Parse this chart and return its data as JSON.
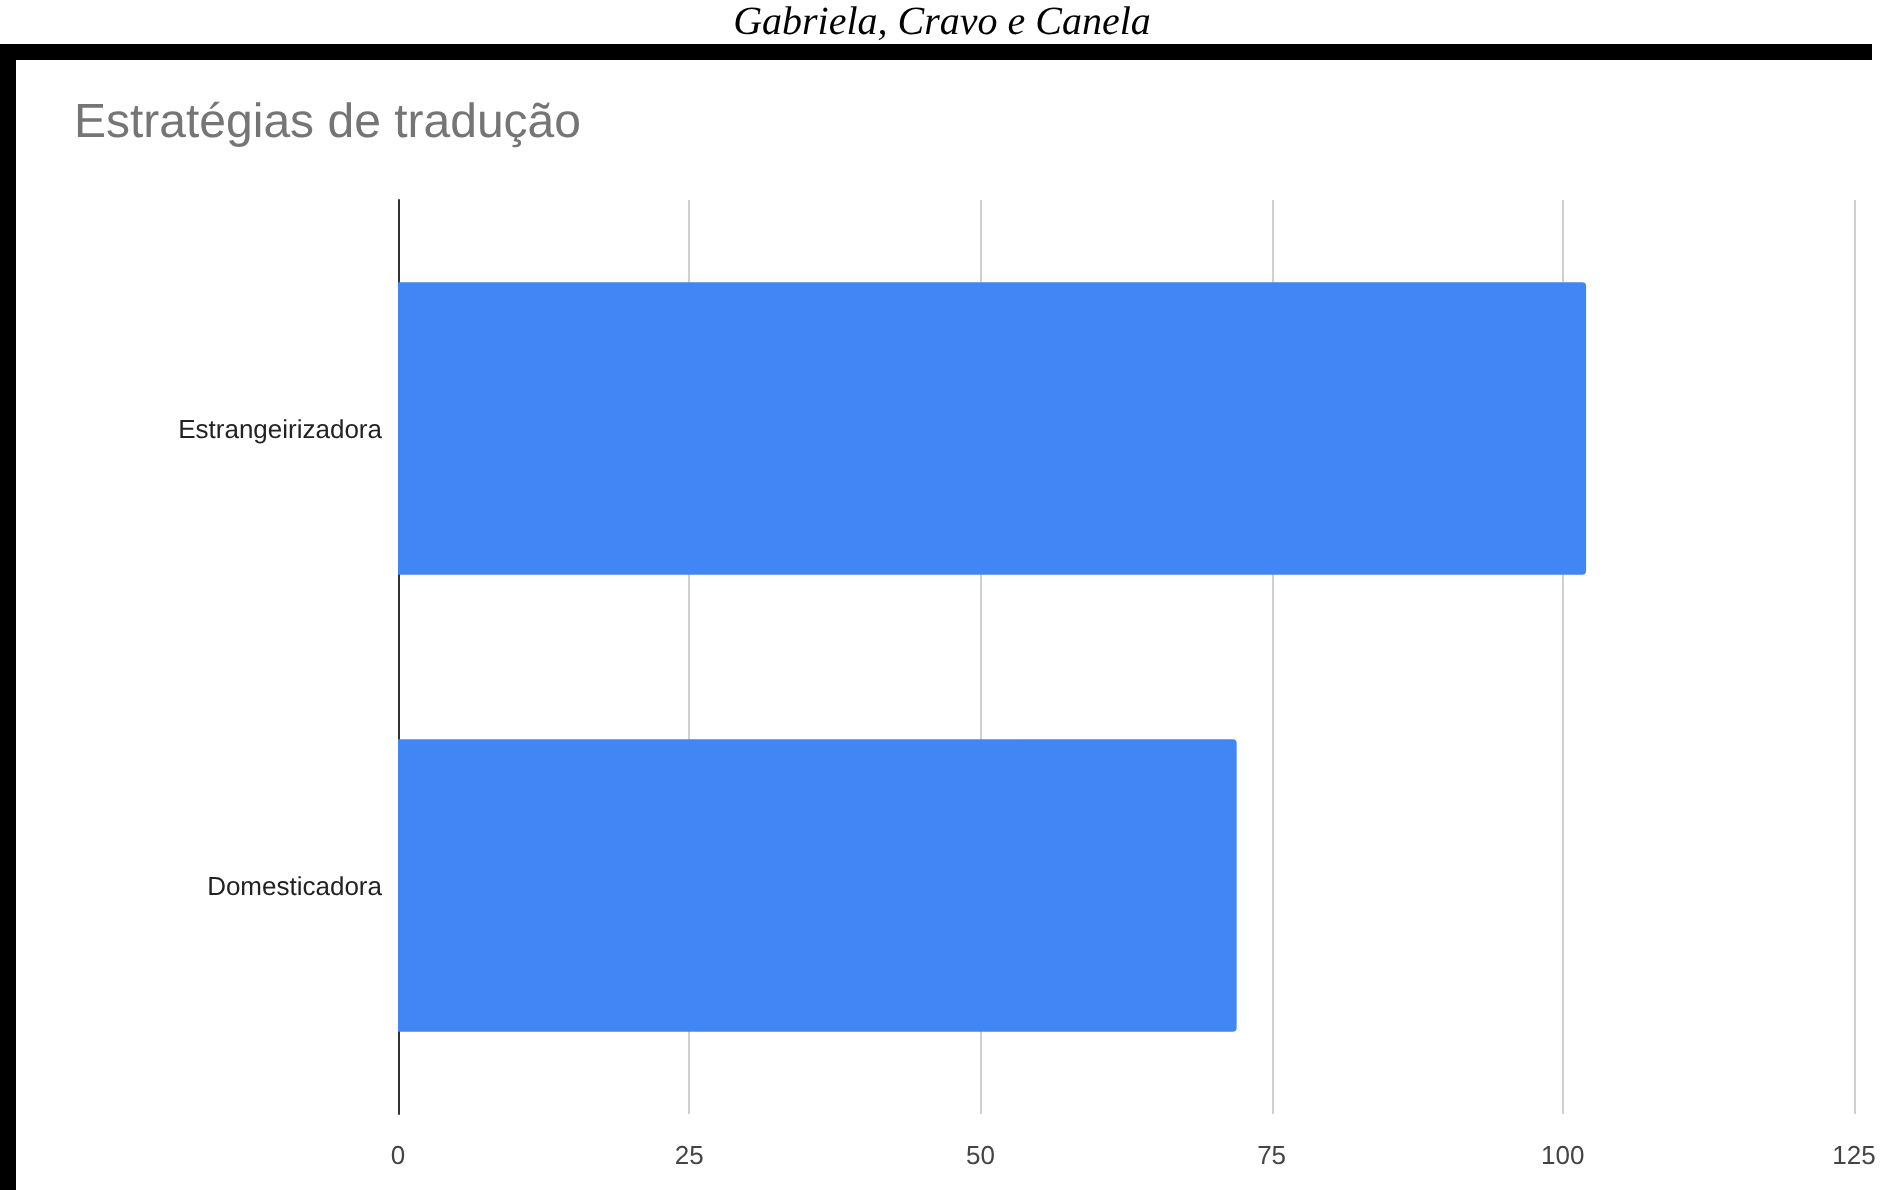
{
  "chart_data": {
    "type": "bar",
    "orientation": "horizontal",
    "title": "Estratégias de tradução",
    "annotations": [
      "Gabriela, Cravo e Canela"
    ],
    "categories": [
      "Estrangeirizadora",
      "Domesticadora"
    ],
    "values": [
      102,
      72
    ],
    "color": "#4285f4",
    "xlim": [
      0,
      125
    ],
    "xticks": [
      0,
      25,
      50,
      75,
      100,
      125
    ],
    "grid": "x"
  }
}
